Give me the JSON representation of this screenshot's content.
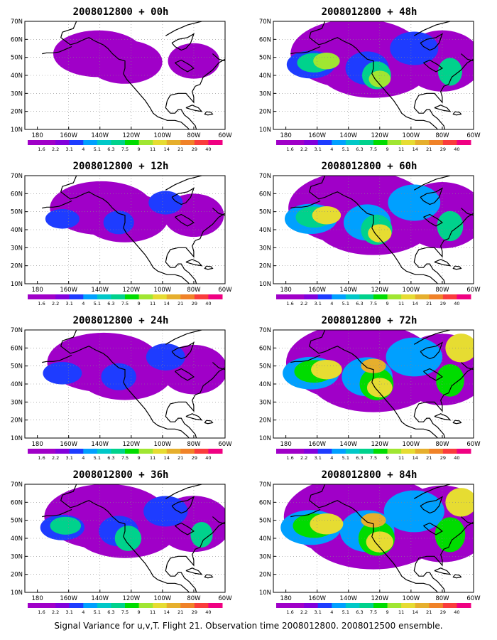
{
  "panels": [
    {
      "title": "2008012800 + 00h",
      "intensity": 0.15
    },
    {
      "title": "2008012800 + 48h",
      "intensity": 0.65
    },
    {
      "title": "2008012800 + 12h",
      "intensity": 0.3
    },
    {
      "title": "2008012800 + 60h",
      "intensity": 0.75
    },
    {
      "title": "2008012800 + 24h",
      "intensity": 0.42
    },
    {
      "title": "2008012800 + 72h",
      "intensity": 0.85
    },
    {
      "title": "2008012800 + 36h",
      "intensity": 0.55
    },
    {
      "title": "2008012800 + 84h",
      "intensity": 0.95
    }
  ],
  "lat_labels": [
    "70N",
    "60N",
    "50N",
    "40N",
    "30N",
    "20N",
    "10N"
  ],
  "lon_labels": [
    "180",
    "160W",
    "140W",
    "120W",
    "100W",
    "80W",
    "60W"
  ],
  "colorbar": {
    "labels": [
      "1.6",
      "2.2",
      "3.1",
      "4",
      "5.1",
      "6.3",
      "7.5",
      "9",
      "11",
      "14",
      "21",
      "29",
      "40"
    ],
    "colors": [
      "#a000c8",
      "#8200dc",
      "#1e3cff",
      "#00a0ff",
      "#00c8c8",
      "#00d28c",
      "#00dc00",
      "#a0e632",
      "#e6dc32",
      "#e6af2d",
      "#f08228",
      "#fa3c3c",
      "#f00082"
    ]
  },
  "footer": "Signal Variance for u,v,T. Flight 21. Observation time 2008012800. 2008012500 ensemble."
}
